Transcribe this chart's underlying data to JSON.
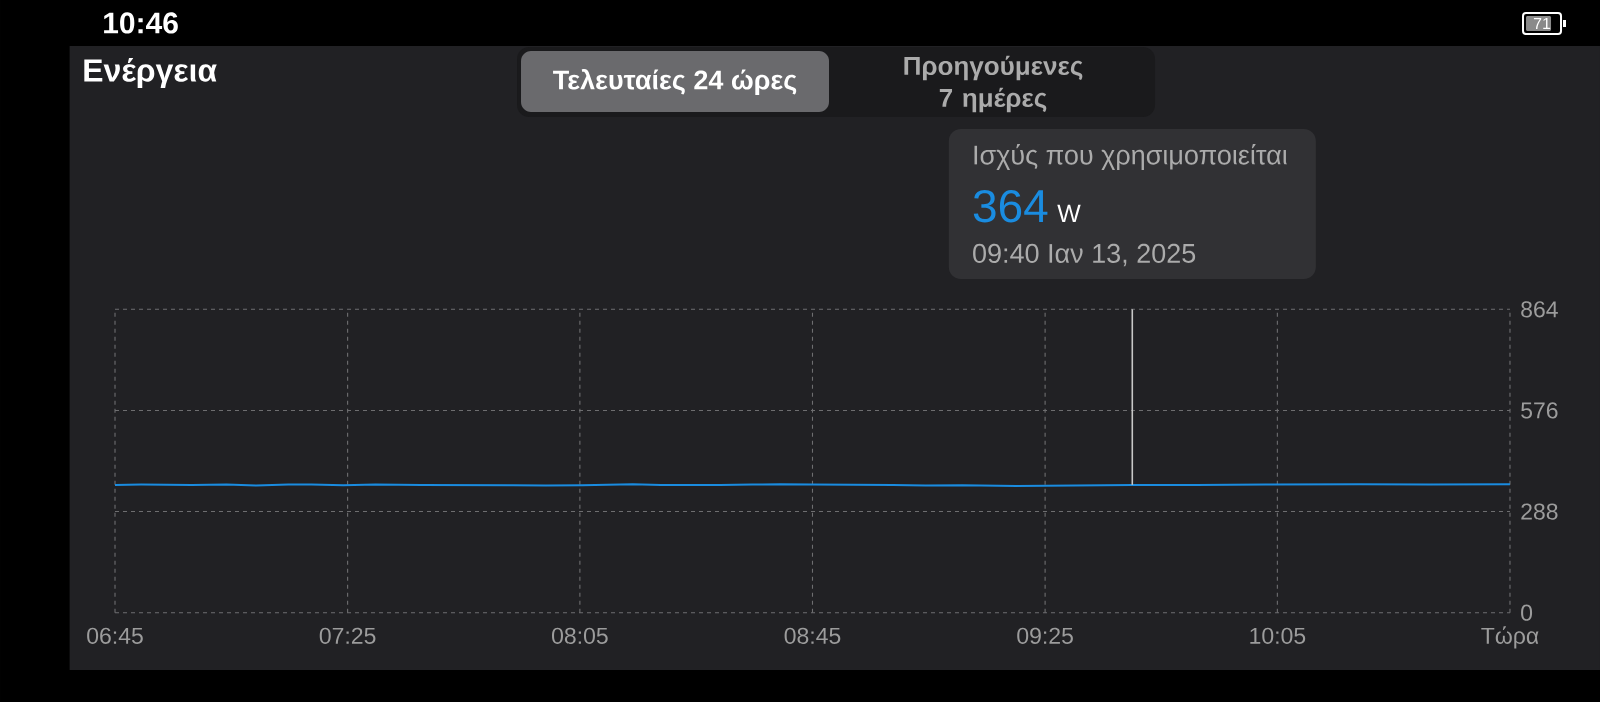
{
  "chart_data": {
    "type": "line",
    "title": "Ενέργεια",
    "x": [
      6.75,
      6.825,
      6.97,
      7.07,
      7.155,
      7.247,
      7.313,
      7.405,
      7.497,
      7.628,
      7.892,
      7.985,
      8.09,
      8.235,
      8.315,
      8.485,
      8.577,
      8.657,
      8.75,
      8.98,
      9.075,
      9.18,
      9.335,
      9.667,
      9.85,
      10.05,
      10.318,
      10.518,
      10.75
    ],
    "series": [
      {
        "color": "#1a8ce0",
        "values": [
          364,
          365,
          364,
          365,
          362,
          365,
          365,
          363,
          365,
          364,
          363,
          362,
          363,
          366,
          364,
          364,
          365,
          366,
          365,
          364,
          362,
          363,
          361,
          364,
          364,
          365,
          366,
          365,
          366
        ]
      }
    ],
    "xlim": [
      6.75,
      10.75
    ],
    "ylim": [
      0,
      864
    ],
    "xticks": [
      {
        "value": 6.75,
        "label": "06:45"
      },
      {
        "value": 7.417,
        "label": "07:25"
      },
      {
        "value": 8.083,
        "label": "08:05"
      },
      {
        "value": 8.75,
        "label": "08:45"
      },
      {
        "value": 9.417,
        "label": "09:25"
      },
      {
        "value": 10.083,
        "label": "10:05"
      },
      {
        "value": 10.75,
        "label": "Τώρα"
      }
    ],
    "yticks": [
      0,
      288,
      576,
      864
    ],
    "grid": true,
    "ref_lines": [
      {
        "axis": "x",
        "value": 9.667,
        "color": "#c8c8c8"
      }
    ],
    "annotations": [
      "Ισχύς που χρησιμοποιείται",
      "364",
      "W",
      "09:40 Ιαν 13, 2025",
      "Τελευταίες 24 ώρες",
      "Προηγούμενες 7 ημέρες",
      "10:46",
      "71"
    ]
  }
}
